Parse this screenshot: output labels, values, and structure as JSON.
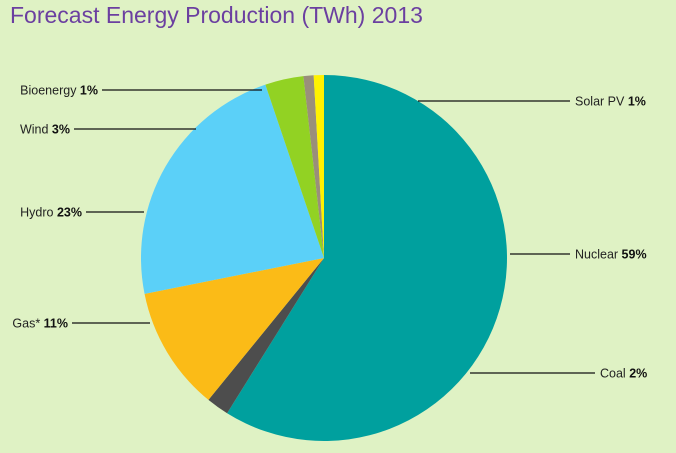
{
  "chart_data": {
    "type": "pie",
    "title": "Forecast Energy Production (TWh) 2013",
    "slices": [
      {
        "name": "Nuclear",
        "label": "59%",
        "value": 59,
        "color": "#00a09e"
      },
      {
        "name": "Coal",
        "label": "2%",
        "value": 2,
        "color": "#4d4d4d"
      },
      {
        "name": "Gas*",
        "label": "11%",
        "value": 11,
        "color": "#fbbb17"
      },
      {
        "name": "Hydro",
        "label": "23%",
        "value": 23,
        "color": "#5bd0f8"
      },
      {
        "name": "Wind",
        "label": "3%",
        "value": 3.4,
        "color": "#92d223"
      },
      {
        "name": "Bioenergy",
        "label": "1%",
        "value": 0.9,
        "color": "#9a8f7a"
      },
      {
        "name": "Solar PV",
        "label": "1%",
        "value": 0.9,
        "color": "#fff200"
      }
    ]
  }
}
